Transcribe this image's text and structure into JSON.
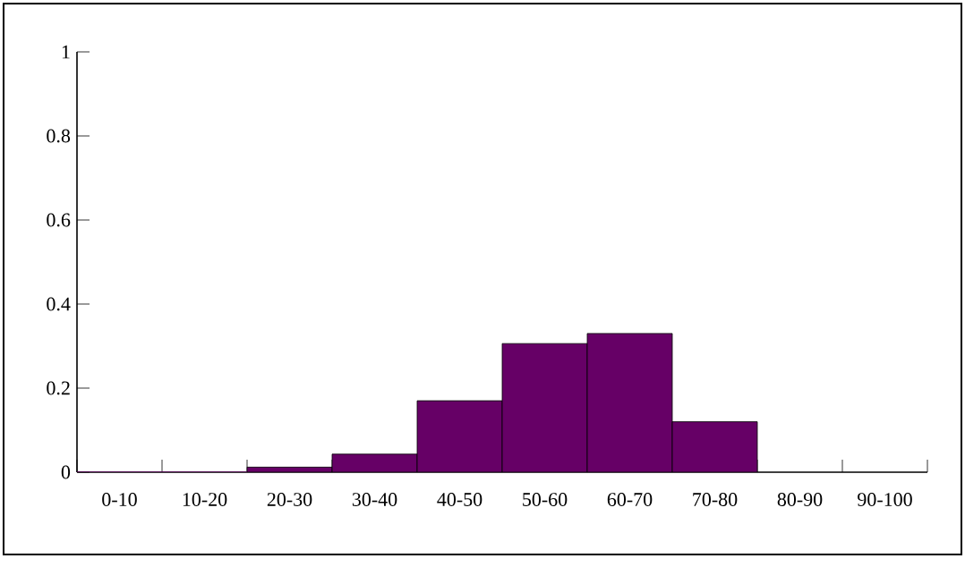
{
  "chart_data": {
    "type": "bar",
    "categories": [
      "0-10",
      "10-20",
      "20-30",
      "30-40",
      "40-50",
      "50-60",
      "60-70",
      "70-80",
      "80-90",
      "90-100"
    ],
    "values": [
      0,
      0,
      0.012,
      0.043,
      0.17,
      0.306,
      0.33,
      0.12,
      null,
      null
    ],
    "color": "#660066",
    "ylim": [
      0,
      1
    ],
    "yticks": [
      0,
      0.2,
      0.4,
      0.6,
      0.8,
      1
    ],
    "grid": false
  }
}
